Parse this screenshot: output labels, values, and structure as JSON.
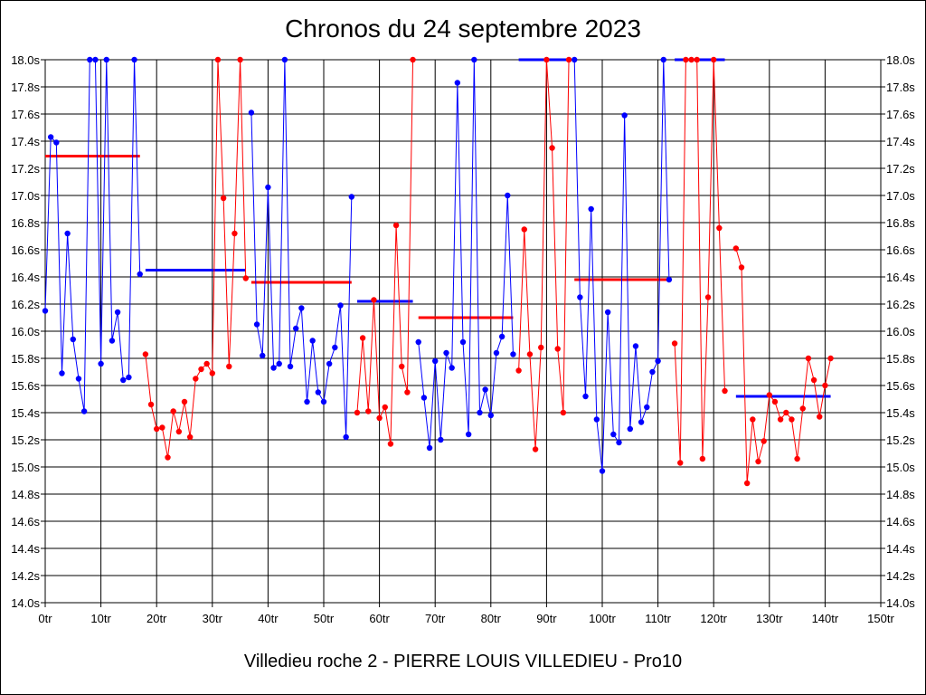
{
  "chart_data": {
    "type": "line",
    "title": "Chronos du 24 septembre 2023",
    "subtitle": "Villedieu roche 2 - PIERRE LOUIS VILLEDIEU - Pro10",
    "xlim": [
      0,
      150
    ],
    "ylim": [
      14.0,
      18.0
    ],
    "grid": true,
    "x_ticks": [
      {
        "value": 0,
        "label": "0tr"
      },
      {
        "value": 10,
        "label": "10tr"
      },
      {
        "value": 20,
        "label": "20tr"
      },
      {
        "value": 30,
        "label": "30tr"
      },
      {
        "value": 40,
        "label": "40tr"
      },
      {
        "value": 50,
        "label": "50tr"
      },
      {
        "value": 60,
        "label": "60tr"
      },
      {
        "value": 70,
        "label": "70tr"
      },
      {
        "value": 80,
        "label": "80tr"
      },
      {
        "value": 90,
        "label": "90tr"
      },
      {
        "value": 100,
        "label": "100tr"
      },
      {
        "value": 110,
        "label": "110tr"
      },
      {
        "value": 120,
        "label": "120tr"
      },
      {
        "value": 130,
        "label": "130tr"
      },
      {
        "value": 140,
        "label": "140tr"
      },
      {
        "value": 150,
        "label": "150tr"
      }
    ],
    "y_ticks": [
      {
        "value": 14.0,
        "label": "14.0s"
      },
      {
        "value": 14.2,
        "label": "14.2s"
      },
      {
        "value": 14.4,
        "label": "14.4s"
      },
      {
        "value": 14.6,
        "label": "14.6s"
      },
      {
        "value": 14.8,
        "label": "14.8s"
      },
      {
        "value": 15.0,
        "label": "15.0s"
      },
      {
        "value": 15.2,
        "label": "15.2s"
      },
      {
        "value": 15.4,
        "label": "15.4s"
      },
      {
        "value": 15.6,
        "label": "15.6s"
      },
      {
        "value": 15.8,
        "label": "15.8s"
      },
      {
        "value": 16.0,
        "label": "16.0s"
      },
      {
        "value": 16.2,
        "label": "16.2s"
      },
      {
        "value": 16.4,
        "label": "16.4s"
      },
      {
        "value": 16.6,
        "label": "16.6s"
      },
      {
        "value": 16.8,
        "label": "16.8s"
      },
      {
        "value": 17.0,
        "label": "17.0s"
      },
      {
        "value": 17.2,
        "label": "17.2s"
      },
      {
        "value": 17.4,
        "label": "17.4s"
      },
      {
        "value": 17.6,
        "label": "17.6s"
      },
      {
        "value": 17.8,
        "label": "17.8s"
      },
      {
        "value": 18.0,
        "label": "18.0s"
      }
    ],
    "colors": {
      "blue": "#0000ff",
      "red": "#ff0000",
      "grid": "#000000"
    },
    "series": [
      {
        "color": "blue",
        "points": [
          [
            0,
            16.15
          ],
          [
            1,
            17.43
          ],
          [
            2,
            17.39
          ],
          [
            3,
            15.69
          ],
          [
            4,
            16.72
          ],
          [
            5,
            15.94
          ],
          [
            6,
            15.65
          ],
          [
            7,
            15.41
          ],
          [
            8,
            18.0
          ],
          [
            9,
            18.0
          ],
          [
            10,
            15.76
          ],
          [
            11,
            18.0
          ],
          [
            12,
            15.93
          ],
          [
            13,
            16.14
          ],
          [
            14,
            15.64
          ],
          [
            15,
            15.66
          ],
          [
            16,
            18.0
          ],
          [
            17,
            16.42
          ]
        ]
      },
      {
        "color": "red",
        "points": [
          [
            18,
            15.83
          ],
          [
            19,
            15.46
          ],
          [
            20,
            15.28
          ],
          [
            21,
            15.29
          ],
          [
            22,
            15.07
          ],
          [
            23,
            15.41
          ],
          [
            24,
            15.26
          ],
          [
            25,
            15.48
          ],
          [
            26,
            15.22
          ],
          [
            27,
            15.65
          ],
          [
            28,
            15.72
          ],
          [
            29,
            15.76
          ],
          [
            30,
            15.69
          ],
          [
            31,
            18.0
          ],
          [
            32,
            16.98
          ],
          [
            33,
            15.74
          ],
          [
            34,
            16.72
          ],
          [
            35,
            18.0
          ],
          [
            36,
            16.39
          ]
        ]
      },
      {
        "color": "blue",
        "points": [
          [
            37,
            17.61
          ],
          [
            38,
            16.05
          ],
          [
            39,
            15.82
          ],
          [
            40,
            17.06
          ],
          [
            41,
            15.73
          ],
          [
            42,
            15.76
          ],
          [
            43,
            18.0
          ],
          [
            44,
            15.74
          ],
          [
            45,
            16.02
          ],
          [
            46,
            16.17
          ],
          [
            47,
            15.48
          ],
          [
            48,
            15.93
          ],
          [
            49,
            15.55
          ],
          [
            50,
            15.48
          ],
          [
            51,
            15.76
          ],
          [
            52,
            15.88
          ],
          [
            53,
            16.19
          ],
          [
            54,
            15.22
          ],
          [
            55,
            16.99
          ]
        ]
      },
      {
        "color": "red",
        "points": [
          [
            56,
            15.4
          ],
          [
            57,
            15.95
          ],
          [
            58,
            15.41
          ],
          [
            59,
            16.23
          ],
          [
            60,
            15.36
          ],
          [
            61,
            15.44
          ],
          [
            62,
            15.17
          ],
          [
            63,
            16.78
          ],
          [
            64,
            15.74
          ],
          [
            65,
            15.55
          ],
          [
            66,
            18.0
          ]
        ]
      },
      {
        "color": "blue",
        "points": [
          [
            67,
            15.92
          ],
          [
            68,
            15.51
          ],
          [
            69,
            15.14
          ],
          [
            70,
            15.78
          ],
          [
            71,
            15.2
          ],
          [
            72,
            15.84
          ],
          [
            73,
            15.73
          ],
          [
            74,
            17.83
          ],
          [
            75,
            15.92
          ],
          [
            76,
            15.24
          ],
          [
            77,
            18.0
          ],
          [
            78,
            15.4
          ],
          [
            79,
            15.57
          ],
          [
            80,
            15.38
          ],
          [
            81,
            15.84
          ],
          [
            82,
            15.96
          ],
          [
            83,
            17.0
          ],
          [
            84,
            15.83
          ]
        ]
      },
      {
        "color": "red",
        "points": [
          [
            85,
            15.71
          ],
          [
            86,
            16.75
          ],
          [
            87,
            15.83
          ],
          [
            88,
            15.13
          ],
          [
            89,
            15.88
          ],
          [
            90,
            18.0
          ],
          [
            91,
            17.35
          ],
          [
            92,
            15.87
          ],
          [
            93,
            15.4
          ],
          [
            94,
            18.0
          ]
        ]
      },
      {
        "color": "blue",
        "points": [
          [
            95,
            18.0
          ],
          [
            96,
            16.25
          ],
          [
            97,
            15.52
          ],
          [
            98,
            16.9
          ],
          [
            99,
            15.35
          ],
          [
            100,
            14.97
          ],
          [
            101,
            16.14
          ],
          [
            102,
            15.24
          ],
          [
            103,
            15.18
          ],
          [
            104,
            17.59
          ],
          [
            105,
            15.28
          ],
          [
            106,
            15.89
          ],
          [
            107,
            15.33
          ],
          [
            108,
            15.44
          ],
          [
            109,
            15.7
          ],
          [
            110,
            15.78
          ],
          [
            111,
            18.0
          ],
          [
            112,
            16.38
          ]
        ]
      },
      {
        "color": "red",
        "points": [
          [
            113,
            15.91
          ],
          [
            114,
            15.03
          ],
          [
            115,
            18.0
          ],
          [
            116,
            18.0
          ],
          [
            117,
            18.0
          ],
          [
            118,
            15.06
          ],
          [
            119,
            16.25
          ],
          [
            120,
            18.0
          ],
          [
            121,
            16.76
          ],
          [
            122,
            15.56
          ]
        ]
      },
      {
        "color": "red",
        "points": [
          [
            124,
            16.61
          ],
          [
            125,
            16.47
          ],
          [
            126,
            14.88
          ],
          [
            127,
            15.35
          ],
          [
            128,
            15.04
          ],
          [
            129,
            15.19
          ],
          [
            130,
            15.53
          ],
          [
            131,
            15.48
          ],
          [
            132,
            15.35
          ],
          [
            133,
            15.4
          ],
          [
            134,
            15.35
          ],
          [
            135,
            15.06
          ],
          [
            136,
            15.43
          ],
          [
            137,
            15.8
          ],
          [
            138,
            15.64
          ],
          [
            139,
            15.37
          ],
          [
            140,
            15.6
          ],
          [
            141,
            15.8
          ]
        ]
      }
    ],
    "averages": [
      {
        "color": "red",
        "x": [
          0,
          17
        ],
        "y": 17.29
      },
      {
        "color": "blue",
        "x": [
          18,
          36
        ],
        "y": 16.45
      },
      {
        "color": "red",
        "x": [
          37,
          55
        ],
        "y": 16.36
      },
      {
        "color": "blue",
        "x": [
          56,
          66
        ],
        "y": 16.22
      },
      {
        "color": "red",
        "x": [
          67,
          84
        ],
        "y": 16.1
      },
      {
        "color": "blue",
        "x": [
          85,
          94
        ],
        "y": 18.0
      },
      {
        "color": "red",
        "x": [
          95,
          112
        ],
        "y": 16.38
      },
      {
        "color": "blue",
        "x": [
          113,
          122
        ],
        "y": 18.0
      },
      {
        "color": "blue",
        "x": [
          124,
          141
        ],
        "y": 15.52
      }
    ]
  }
}
